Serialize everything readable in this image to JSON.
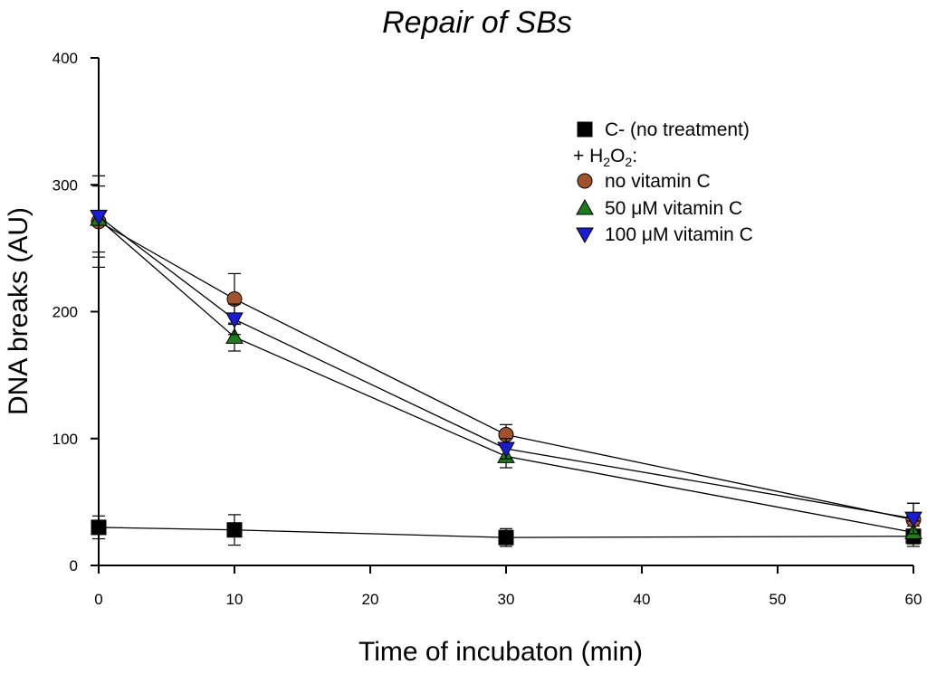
{
  "chart_data": {
    "type": "line",
    "title": "Repair of SBs",
    "xlabel": "Time of incubaton (min)",
    "ylabel": "DNA breaks (AU)",
    "xlim": [
      0,
      60
    ],
    "ylim": [
      0,
      400
    ],
    "x_ticks": [
      0,
      10,
      20,
      30,
      40,
      50,
      60
    ],
    "y_ticks": [
      0,
      100,
      200,
      300,
      400
    ],
    "x": [
      0,
      10,
      30,
      60
    ],
    "legend_heading": "+ H2O2:",
    "legend_heading_parts": {
      "prefix": "+ H",
      "sub1": "2",
      "mid": "O",
      "sub2": "2",
      "suffix": ":"
    },
    "series": [
      {
        "name": "C- (no treatment)",
        "marker": "square",
        "color": "#000000",
        "values": [
          30,
          28,
          22,
          23
        ],
        "errors": [
          9,
          12,
          7,
          8
        ]
      },
      {
        "name": "no vitamin C",
        "marker": "circle",
        "color": "#a0522d",
        "values": [
          271,
          210,
          103,
          36
        ],
        "errors": [
          36,
          20,
          8,
          13
        ]
      },
      {
        "name": "50 μM vitamin C",
        "marker": "triangle-up",
        "color": "#1f7a1f",
        "values": [
          273,
          180,
          86,
          26
        ],
        "errors": [
          26,
          11,
          9,
          9
        ]
      },
      {
        "name": "100 μM vitamin C",
        "marker": "triangle-down",
        "color": "#1c1ccf",
        "values": [
          275,
          194,
          92,
          37
        ],
        "errors": [
          32,
          12,
          8,
          12
        ]
      }
    ],
    "legend_position": "top-right"
  }
}
